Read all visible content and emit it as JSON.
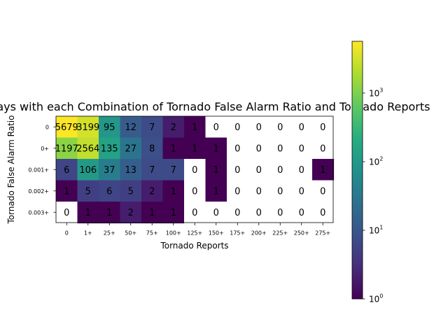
{
  "chart_data": {
    "type": "heatmap",
    "title": "Total Days with each Combination of Tornado False Alarm Ratio and Tornado Reports",
    "xlabel": "Tornado Reports",
    "ylabel": "Tornado False Alarm Ratio",
    "x_categories": [
      "0",
      "1+",
      "25+",
      "50+",
      "75+",
      "100+",
      "125+",
      "150+",
      "175+",
      "200+",
      "225+",
      "250+",
      "275+"
    ],
    "y_categories": [
      "0",
      "0+",
      "0.001+",
      "0.002+",
      "0.003+"
    ],
    "values": [
      [
        5679,
        3199,
        95,
        12,
        7,
        2,
        1,
        0,
        0,
        0,
        0,
        0,
        0
      ],
      [
        1197,
        2564,
        135,
        27,
        8,
        1,
        1,
        1,
        0,
        0,
        0,
        0,
        0
      ],
      [
        6,
        106,
        37,
        13,
        7,
        7,
        0,
        1,
        0,
        0,
        0,
        0,
        1
      ],
      [
        1,
        5,
        6,
        5,
        2,
        1,
        0,
        1,
        0,
        0,
        0,
        0,
        0
      ],
      [
        0,
        1,
        1,
        2,
        1,
        1,
        0,
        0,
        0,
        0,
        0,
        0,
        0
      ]
    ],
    "color_scale": "log",
    "colormap": "viridis",
    "zero_color": "#ffffff",
    "colorbar": {
      "range": [
        1,
        5679
      ],
      "ticks": [
        {
          "value": 1,
          "base": "10",
          "exp": "0"
        },
        {
          "value": 10,
          "base": "10",
          "exp": "1"
        },
        {
          "value": 100,
          "base": "10",
          "exp": "2"
        },
        {
          "value": 1000,
          "base": "10",
          "exp": "3"
        }
      ]
    },
    "grid": false,
    "legend": "colorbar-right"
  }
}
